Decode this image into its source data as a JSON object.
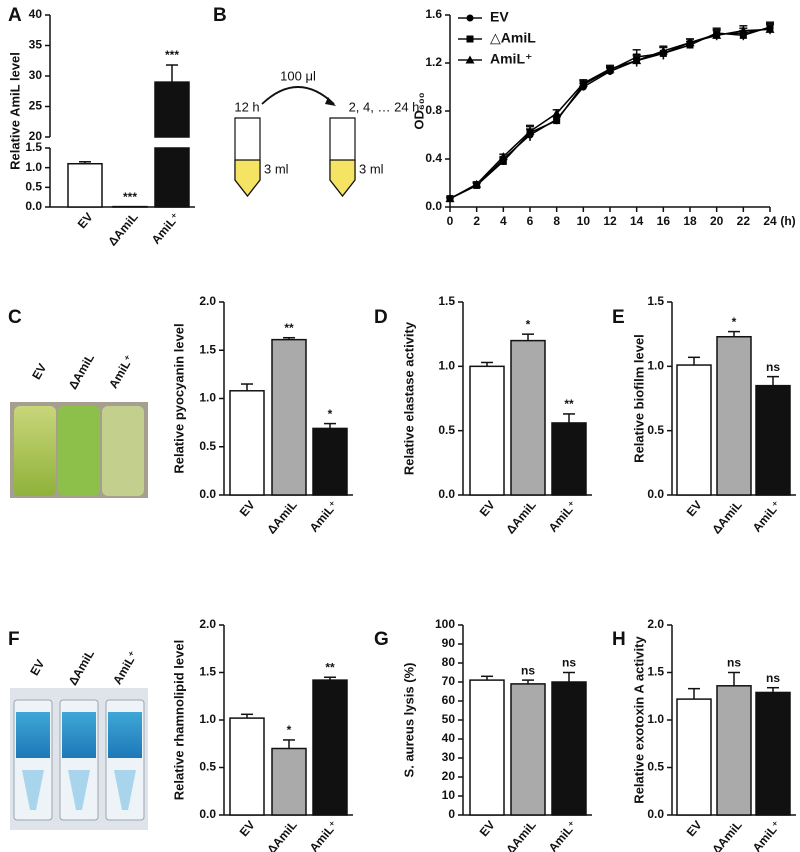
{
  "chart_data": [
    {
      "type": "broken-bar",
      "panel": "A",
      "ylabel": "Relative AmiL level",
      "categories": [
        "EV",
        "ΔAmiL",
        "AmiL⁺"
      ],
      "values": [
        1.1,
        0.01,
        29
      ],
      "errors": [
        0.05,
        0,
        2.8
      ],
      "annotations": [
        null,
        "***",
        "***"
      ],
      "colors": [
        "#ffffff",
        "#aaaaaa",
        "#111111"
      ],
      "segments": [
        {
          "ylim": [
            0,
            1.5
          ],
          "yticks": [
            {
              "value": 0,
              "label": "0.0"
            },
            0.5,
            {
              "value": 1,
              "label": "1.0"
            },
            1.5
          ]
        },
        {
          "ylim": [
            20,
            40
          ],
          "yticks": [
            20,
            25,
            30,
            35,
            40
          ]
        }
      ]
    },
    {
      "type": "line",
      "panel": "B",
      "ylabel": "OD₆₀₀",
      "x_unit": "(h)",
      "diagram": {
        "start": "12 h",
        "transfer": "100 μl",
        "sample_times": "2, 4, … 24 h",
        "volume_left": "3 ml",
        "volume_right": "3 ml"
      },
      "x": [
        0,
        2,
        4,
        6,
        8,
        10,
        12,
        14,
        16,
        18,
        20,
        22,
        24
      ],
      "xlim": [
        0,
        24
      ],
      "xticks": [
        0,
        2,
        4,
        6,
        8,
        10,
        12,
        14,
        16,
        18,
        20,
        22,
        24
      ],
      "ylim": [
        0,
        1.6
      ],
      "yticks": [
        {
          "value": 0,
          "label": "0.0"
        },
        0.4,
        0.8,
        1.2,
        1.6
      ],
      "series": [
        {
          "name": "EV",
          "color": "#000000",
          "marker": "circle",
          "values": [
            0.07,
            0.18,
            0.4,
            0.6,
            0.73,
            1.0,
            1.13,
            1.22,
            1.28,
            1.37,
            1.44,
            1.45,
            1.49
          ],
          "errors": [
            0.01,
            0.02,
            0.02,
            0.05,
            0.03,
            0.03,
            0.03,
            0.05,
            0.05,
            0.03,
            0.04,
            0.04,
            0.04
          ]
        },
        {
          "name": "△AmiL",
          "color": "#000000",
          "marker": "square",
          "values": [
            0.07,
            0.18,
            0.38,
            0.62,
            0.72,
            1.02,
            1.14,
            1.25,
            1.28,
            1.35,
            1.45,
            1.43,
            1.5
          ],
          "errors": [
            0.01,
            0.02,
            0.03,
            0.06,
            0.03,
            0.03,
            0.03,
            0.06,
            0.05,
            0.03,
            0.04,
            0.04,
            0.04
          ]
        },
        {
          "name": "AmiL⁺",
          "color": "#000000",
          "marker": "triangle",
          "values": [
            0.07,
            0.19,
            0.42,
            0.63,
            0.78,
            1.03,
            1.15,
            1.22,
            1.3,
            1.37,
            1.43,
            1.47,
            1.48
          ],
          "errors": [
            0.01,
            0.02,
            0.02,
            0.04,
            0.03,
            0.03,
            0.03,
            0.04,
            0.04,
            0.03,
            0.04,
            0.04,
            0.04
          ]
        }
      ],
      "legend": "upper left"
    },
    {
      "type": "bar",
      "panel": "C",
      "ylabel": "Relative pyocyanin level",
      "photo_labels": [
        "EV",
        "ΔAmiL",
        "AmiL⁺"
      ],
      "categories": [
        "EV",
        "ΔAmiL",
        "AmiL⁺"
      ],
      "values": [
        1.08,
        1.61,
        0.69
      ],
      "errors": [
        0.07,
        0.02,
        0.05
      ],
      "annotations": [
        null,
        "**",
        "*"
      ],
      "colors": [
        "#ffffff",
        "#aaaaaa",
        "#111111"
      ],
      "ylim": [
        0,
        2
      ],
      "yticks": [
        {
          "value": 0,
          "label": "0.0"
        },
        0.5,
        {
          "value": 1,
          "label": "1.0"
        },
        1.5,
        {
          "value": 2,
          "label": "2.0"
        }
      ]
    },
    {
      "type": "bar",
      "panel": "D",
      "ylabel": "Relative elastase activity",
      "categories": [
        "EV",
        "ΔAmiL",
        "AmiL⁺"
      ],
      "values": [
        1.0,
        1.2,
        0.56
      ],
      "errors": [
        0.03,
        0.05,
        0.07
      ],
      "annotations": [
        null,
        "*",
        "**"
      ],
      "colors": [
        "#ffffff",
        "#aaaaaa",
        "#111111"
      ],
      "ylim": [
        0,
        1.5
      ],
      "yticks": [
        {
          "value": 0,
          "label": "0.0"
        },
        0.5,
        {
          "value": 1,
          "label": "1.0"
        },
        1.5
      ]
    },
    {
      "type": "bar",
      "panel": "E",
      "ylabel": "Relative biofilm level",
      "categories": [
        "EV",
        "ΔAmiL",
        "AmiL⁺"
      ],
      "values": [
        1.01,
        1.23,
        0.85
      ],
      "errors": [
        0.06,
        0.04,
        0.07
      ],
      "annotations": [
        null,
        "*",
        "ns"
      ],
      "colors": [
        "#ffffff",
        "#aaaaaa",
        "#111111"
      ],
      "ylim": [
        0,
        1.5
      ],
      "yticks": [
        {
          "value": 0,
          "label": "0.0"
        },
        0.5,
        {
          "value": 1,
          "label": "1.0"
        },
        1.5
      ]
    },
    {
      "type": "bar",
      "panel": "F",
      "ylabel": "Relative rhamnolipid level",
      "photo_labels": [
        "EV",
        "ΔAmiL",
        "AmiL⁺"
      ],
      "categories": [
        "EV",
        "ΔAmiL",
        "AmiL⁺"
      ],
      "values": [
        1.02,
        0.7,
        1.42
      ],
      "errors": [
        0.04,
        0.09,
        0.03
      ],
      "annotations": [
        null,
        "*",
        "**"
      ],
      "colors": [
        "#ffffff",
        "#aaaaaa",
        "#111111"
      ],
      "ylim": [
        0,
        2
      ],
      "yticks": [
        {
          "value": 0,
          "label": "0.0"
        },
        0.5,
        {
          "value": 1,
          "label": "1.0"
        },
        1.5,
        {
          "value": 2,
          "label": "2.0"
        }
      ]
    },
    {
      "type": "bar",
      "panel": "G",
      "ylabel": "S. aureus lysis (%)",
      "categories": [
        "EV",
        "ΔAmiL",
        "AmiL⁺"
      ],
      "values": [
        71,
        69,
        70
      ],
      "errors": [
        2,
        2,
        5
      ],
      "annotations": [
        null,
        "ns",
        "ns"
      ],
      "colors": [
        "#ffffff",
        "#aaaaaa",
        "#111111"
      ],
      "ylim": [
        0,
        100
      ],
      "yticks": [
        0,
        10,
        20,
        30,
        40,
        50,
        60,
        70,
        80,
        90,
        100
      ]
    },
    {
      "type": "bar",
      "panel": "H",
      "ylabel": "Relative exotoxin A activity",
      "categories": [
        "EV",
        "ΔAmiL",
        "AmiL⁺"
      ],
      "values": [
        1.22,
        1.36,
        1.29
      ],
      "errors": [
        0.11,
        0.14,
        0.05
      ],
      "annotations": [
        null,
        "ns",
        "ns"
      ],
      "colors": [
        "#ffffff",
        "#aaaaaa",
        "#111111"
      ],
      "ylim": [
        0,
        2
      ],
      "yticks": [
        {
          "value": 0,
          "label": "0.0"
        },
        0.5,
        {
          "value": 1,
          "label": "1.0"
        },
        1.5,
        {
          "value": 2,
          "label": "2.0"
        }
      ]
    }
  ]
}
